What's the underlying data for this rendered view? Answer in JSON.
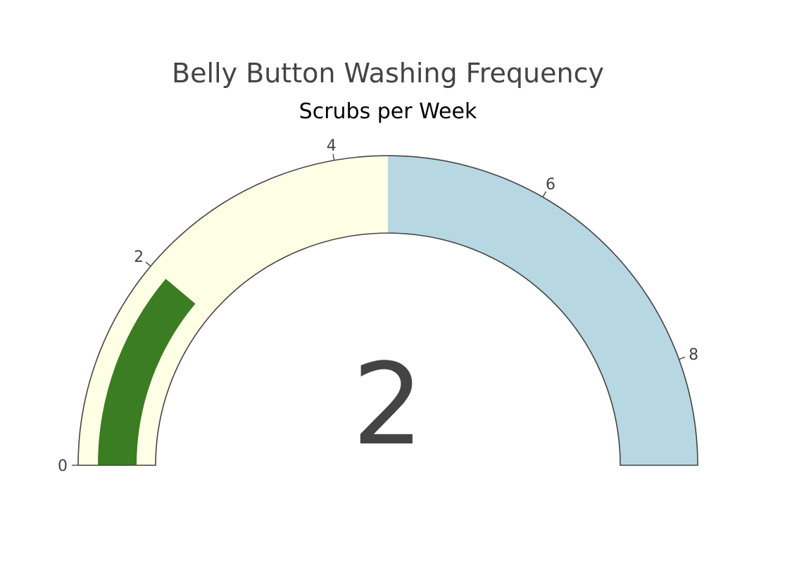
{
  "chart_data": {
    "type": "gauge",
    "title": "Belly Button Washing Frequency",
    "subtitle": "Scrubs per Week",
    "value": 2,
    "value_label": "2",
    "range": [
      0,
      9
    ],
    "ticks": [
      {
        "value": 0,
        "label": "0"
      },
      {
        "value": 2,
        "label": "2"
      },
      {
        "value": 4,
        "label": "4"
      },
      {
        "value": 6,
        "label": "6"
      },
      {
        "value": 8,
        "label": "8"
      }
    ],
    "steps": [
      {
        "range": [
          0,
          4.5
        ],
        "color": "#ffffe6"
      },
      {
        "range": [
          4.5,
          9
        ],
        "color": "#b7d8e3"
      }
    ],
    "bar_color": "#3a7d22",
    "outline_color": "#444444"
  }
}
